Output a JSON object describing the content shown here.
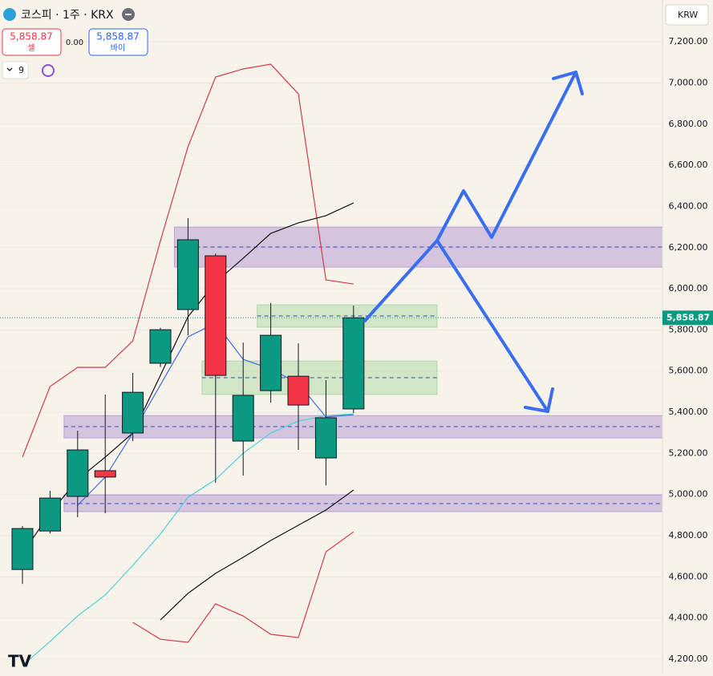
{
  "chart_data": {
    "type": "candlestick",
    "title": "코스피 · 1주 · KRX",
    "currency": "KRW",
    "sell": {
      "price": "5,858.87",
      "label": "셀"
    },
    "spread": "0.00",
    "buy": {
      "price": "5,858.87",
      "label": "바이"
    },
    "interval_count": "9",
    "last_price": 5858.87,
    "last_price_label": "5,858.87",
    "open": [
      4636,
      4823,
      4991,
      5116,
      5299,
      5638,
      5899,
      6160,
      5260,
      5505,
      5575,
      5178,
      5416
    ],
    "high": [
      4847,
      5018,
      5310,
      5486,
      5591,
      5810,
      6343,
      6171,
      5739,
      5930,
      5735,
      5556,
      5918
    ],
    "low": [
      4566,
      4812,
      4890,
      4909,
      5260,
      5620,
      5774,
      5057,
      5092,
      5447,
      5217,
      5045,
      5396
    ],
    "close": [
      4835,
      4983,
      5217,
      5085,
      5497,
      5801,
      6238,
      5579,
      5482,
      5774,
      5435,
      5373,
      5858.87
    ],
    "up_color": "#0c9981",
    "down_color": "#f23645",
    "series": [
      {
        "color": "#d23a4c",
        "values": [
          5182,
          5525,
          5618,
          5618,
          5747,
          6233,
          6690,
          7029,
          7068,
          7091,
          6947,
          6043,
          6023
        ]
      },
      {
        "color": "#d23a4c",
        "values": [
          null,
          null,
          null,
          null,
          4379,
          4297,
          4282,
          4469,
          4410,
          4321,
          4305,
          4722,
          4819
        ]
      },
      {
        "color": "#111111",
        "values": [
          4714,
          4909,
          5073,
          5182,
          5299,
          5579,
          5864,
          6031,
          6148,
          6269,
          6320,
          6355,
          6417
        ]
      },
      {
        "color": "#111111",
        "values": [
          null,
          null,
          null,
          null,
          null,
          4391,
          4520,
          4617,
          4695,
          4777,
          4851,
          4925,
          5022
        ]
      },
      {
        "color": "#3d6fe0",
        "values": [
          null,
          null,
          4948,
          5085,
          5299,
          5533,
          5766,
          5833,
          5657,
          5610,
          5540,
          5377,
          5388
        ]
      },
      {
        "color": "#4fcfd8",
        "values": [
          4169,
          4286,
          4410,
          4512,
          4656,
          4808,
          4987,
          5073,
          5201,
          5299,
          5357,
          5384,
          5392
        ]
      }
    ],
    "zones": [
      {
        "low": 6105,
        "high": 6300,
        "mid": 6203,
        "start": 6,
        "color": "purple"
      },
      {
        "low": 5275,
        "high": 5384,
        "mid": 5330,
        "start": 2,
        "color": "purple"
      },
      {
        "low": 4917,
        "high": 4999,
        "mid": 4956,
        "start": 2,
        "color": "purple"
      },
      {
        "low": 5813,
        "high": 5922,
        "mid": 5868,
        "start": 9,
        "color": "green"
      },
      {
        "low": 5486,
        "high": 5649,
        "mid": 5568,
        "start": 7,
        "color": "green"
      }
    ],
    "ylim": [
      4134,
      7403
    ],
    "yticks": [
      {
        "value": 4200,
        "label": "4,200.00"
      },
      {
        "value": 4400,
        "label": "4,400.00"
      },
      {
        "value": 4600,
        "label": "4,600.00"
      },
      {
        "value": 4800,
        "label": "4,800.00"
      },
      {
        "value": 5000,
        "label": "5,000.00"
      },
      {
        "value": 5200,
        "label": "5,200.00"
      },
      {
        "value": 5400,
        "label": "5,400.00"
      },
      {
        "value": 5600,
        "label": "5,600.00"
      },
      {
        "value": 5800,
        "label": "5,800.00"
      },
      {
        "value": 6000,
        "label": "6,000.00"
      },
      {
        "value": 6200,
        "label": "6,200.00"
      },
      {
        "value": 6400,
        "label": "6,400.00"
      },
      {
        "value": 6600,
        "label": "6,600.00"
      },
      {
        "value": 6800,
        "label": "6,800.00"
      },
      {
        "value": 7000,
        "label": "7,000.00"
      },
      {
        "value": 7200,
        "label": "7,200.00"
      }
    ],
    "grid": true
  }
}
